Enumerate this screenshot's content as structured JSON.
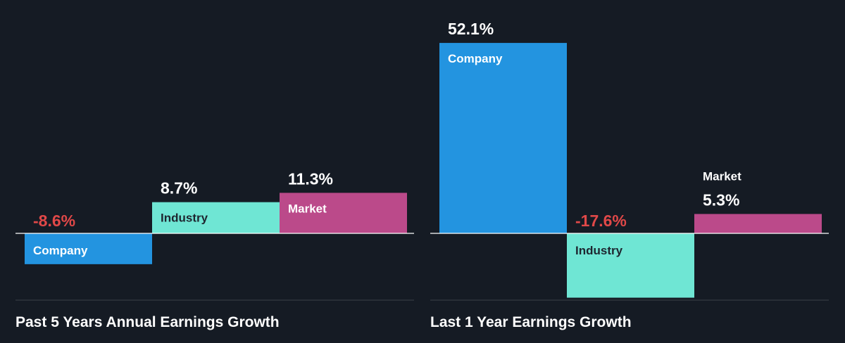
{
  "colors": {
    "background": "#151b24",
    "company": "#2394e0",
    "industry": "#6fe6d4",
    "market": "#bb4a8a",
    "positive_text": "#ffffff",
    "negative_text": "#e04848",
    "axis": "#ffffff",
    "divider": "#3a4049"
  },
  "chart_data": [
    {
      "type": "bar",
      "title": "Past 5 Years Annual Earnings Growth",
      "categories": [
        "Company",
        "Industry",
        "Market"
      ],
      "values": [
        -8.6,
        8.7,
        11.3
      ],
      "value_labels": [
        "-8.6%",
        "8.7%",
        "11.3%"
      ],
      "unit": "%"
    },
    {
      "type": "bar",
      "title": "Last 1 Year Earnings Growth",
      "categories": [
        "Company",
        "Industry",
        "Market"
      ],
      "values": [
        52.1,
        -17.6,
        5.3
      ],
      "value_labels": [
        "52.1%",
        "-17.6%",
        "5.3%"
      ],
      "unit": "%"
    }
  ]
}
